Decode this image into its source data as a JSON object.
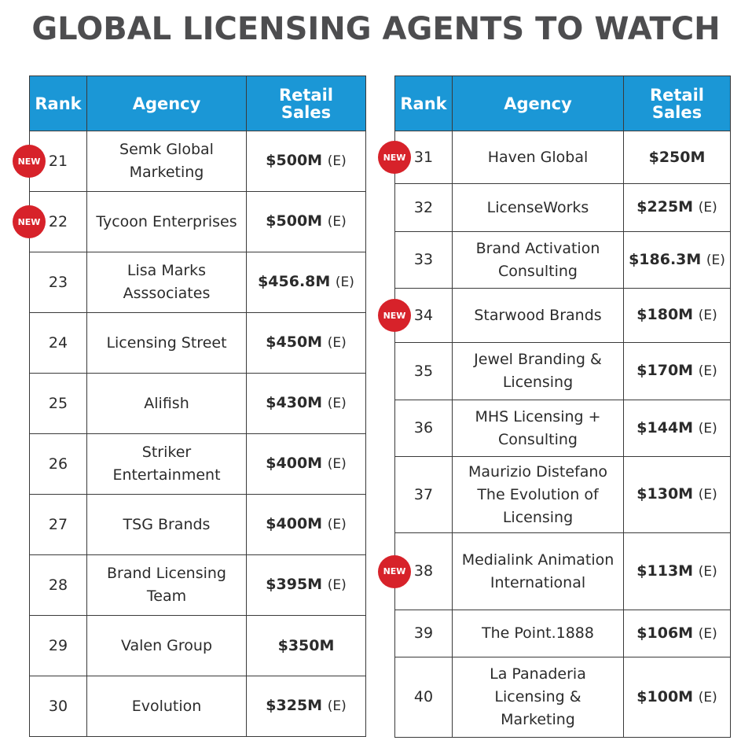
{
  "title": "GLOBAL LICENSING AGENTS TO WATCH",
  "headers": {
    "rank": "Rank",
    "agency": "Agency",
    "sales": "Retail Sales"
  },
  "new_badge": "NEW",
  "badge_color": "#d7222a",
  "header_color": "#1b97d6",
  "left": [
    {
      "rank": "21",
      "agency": "Semk Global Marketing",
      "sales": "$500M",
      "est": "(E)",
      "new": true
    },
    {
      "rank": "22",
      "agency": "Tycoon Enterprises",
      "sales": "$500M",
      "est": "(E)",
      "new": true
    },
    {
      "rank": "23",
      "agency": "Lisa Marks Asssociates",
      "sales": "$456.8M",
      "est": "(E)",
      "new": false
    },
    {
      "rank": "24",
      "agency": "Licensing Street",
      "sales": "$450M",
      "est": "(E)",
      "new": false
    },
    {
      "rank": "25",
      "agency": "Alifish",
      "sales": "$430M",
      "est": "(E)",
      "new": false
    },
    {
      "rank": "26",
      "agency": "Striker Entertainment",
      "sales": "$400M",
      "est": "(E)",
      "new": false
    },
    {
      "rank": "27",
      "agency": "TSG Brands",
      "sales": "$400M",
      "est": "(E)",
      "new": false
    },
    {
      "rank": "28",
      "agency": "Brand Licensing Team",
      "sales": "$395M",
      "est": "(E)",
      "new": false
    },
    {
      "rank": "29",
      "agency": "Valen Group",
      "sales": "$350M",
      "est": "",
      "new": false
    },
    {
      "rank": "30",
      "agency": "Evolution",
      "sales": "$325M",
      "est": "(E)",
      "new": false
    }
  ],
  "right": [
    {
      "rank": "31",
      "agency": "Haven Global",
      "sales": "$250M",
      "est": "",
      "new": true
    },
    {
      "rank": "32",
      "agency": "LicenseWorks",
      "sales": "$225M",
      "est": "(E)",
      "new": false
    },
    {
      "rank": "33",
      "agency": "Brand Activation Consulting",
      "sales": "$186.3M",
      "est": "(E)",
      "new": false
    },
    {
      "rank": "34",
      "agency": "Starwood Brands",
      "sales": "$180M",
      "est": "(E)",
      "new": true
    },
    {
      "rank": "35",
      "agency": "Jewel Branding & Licensing",
      "sales": "$170M",
      "est": "(E)",
      "new": false
    },
    {
      "rank": "36",
      "agency": "MHS Licensing + Consulting",
      "sales": "$144M",
      "est": "(E)",
      "new": false
    },
    {
      "rank": "37",
      "agency": "Maurizio Distefano The Evolution of Licensing",
      "sales": "$130M",
      "est": "(E)",
      "new": false
    },
    {
      "rank": "38",
      "agency": "Medialink Animation International",
      "sales": "$113M",
      "est": "(E)",
      "new": true
    },
    {
      "rank": "39",
      "agency": "The Point.1888",
      "sales": "$106M",
      "est": "(E)",
      "new": false
    },
    {
      "rank": "40",
      "agency": "La Panaderia Licensing & Marketing",
      "sales": "$100M",
      "est": "(E)",
      "new": false
    }
  ]
}
